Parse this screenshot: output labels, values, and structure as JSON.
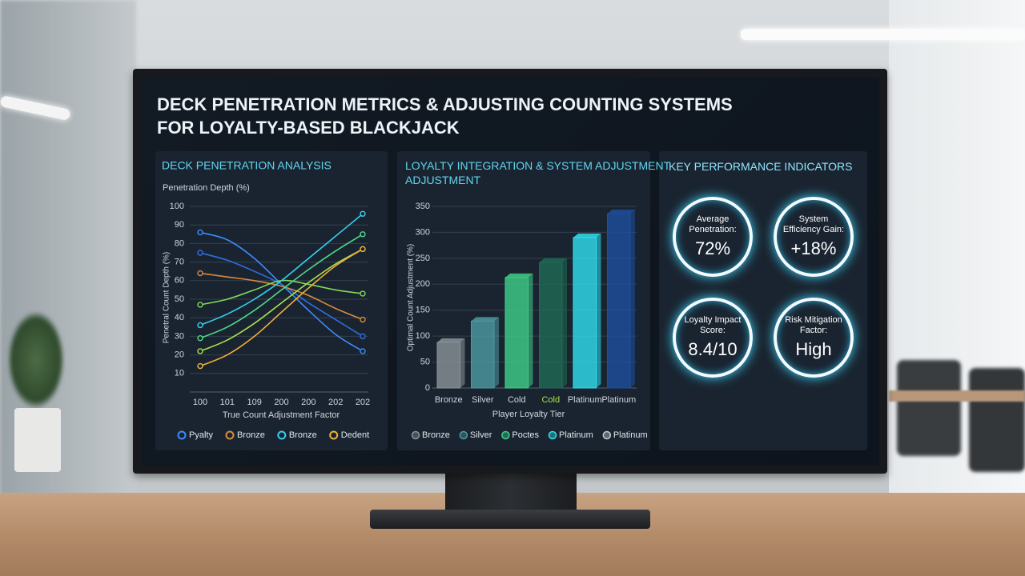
{
  "title_lines": [
    "DECK PENETRATION METRICS & ADJUSTING COUNTING SYSTEMS",
    "FOR LOYALTY-BASED BLACKJACK"
  ],
  "chart_data": [
    {
      "type": "line",
      "title": "DECK PENETRATION ANALYSIS",
      "subtitle": "Penetration Depth (%)",
      "y_label": "Penetral Count Depth (%)",
      "x_label": "True Count Adjustment Factor",
      "categories": [
        "100",
        "101",
        "109",
        "200",
        "200",
        "202",
        "202"
      ],
      "ylim": [
        0,
        100
      ],
      "yticks": [
        10,
        20,
        30,
        40,
        50,
        60,
        70,
        80,
        90,
        100
      ],
      "grid": true,
      "series": [
        {
          "name": "Pyalty",
          "color": "#3d8cff",
          "values": [
            86,
            82,
            72,
            58,
            44,
            31,
            22
          ]
        },
        {
          "color": "#2f6fe0",
          "values": [
            75,
            71,
            65,
            58,
            48,
            39,
            30
          ]
        },
        {
          "name": "Bronze",
          "color": "#d98a3d",
          "values": [
            64,
            62,
            60,
            57,
            52,
            45,
            39
          ]
        },
        {
          "color": "#7fd957",
          "values": [
            47,
            50,
            55,
            60,
            58,
            55,
            53
          ]
        },
        {
          "name": "Bronze",
          "color": "#35d0f0",
          "values": [
            36,
            42,
            50,
            60,
            72,
            84,
            96
          ]
        },
        {
          "color": "#4fd98a",
          "values": [
            29,
            35,
            44,
            55,
            66,
            76,
            85
          ]
        },
        {
          "color": "#a8e04a",
          "values": [
            22,
            28,
            37,
            48,
            59,
            69,
            77
          ]
        },
        {
          "name": "Dedent",
          "color": "#f0b13a",
          "values": [
            14,
            20,
            30,
            43,
            56,
            68,
            77
          ]
        }
      ]
    },
    {
      "type": "bar",
      "title": "LOYALTY INTEGRATION & SYSTEM ADJUSTMENT ADJUSTMENT",
      "y_label": "Optimal Count Adjustment (%)",
      "x_label": "Player Loyalty Tier",
      "categories": [
        "Bronze",
        "Silver",
        "Cold",
        "Cold",
        "Platinum",
        "Platinum"
      ],
      "values": [
        88,
        129,
        213,
        242,
        290,
        336
      ],
      "colors": [
        "#8a9499",
        "#4e9ba3",
        "#3fcf8a",
        "#1f6b55",
        "#2fe0f0",
        "#1e4fa0"
      ],
      "ylim": [
        0,
        350
      ],
      "yticks": [
        0,
        50,
        100,
        150,
        200,
        250,
        300,
        350
      ],
      "grid": true,
      "legend": [
        {
          "name": "Bronze",
          "color": "#8a9499"
        },
        {
          "name": "Silver",
          "color": "#4e9ba3"
        },
        {
          "name": "Poctes",
          "color": "#3fcf8a"
        },
        {
          "name": "Platinum",
          "color": "#2fe0f0"
        },
        {
          "name": "Platinum",
          "color": "#c8ccd0"
        }
      ]
    }
  ],
  "kpis": {
    "title": "KEY PERFORMANCE INDICATORS",
    "items": [
      {
        "label": "Average Penetration:",
        "value": "72%"
      },
      {
        "label": "System Efficiency Gain:",
        "value": "+18%"
      },
      {
        "label": "Loyalty Impact Score:",
        "value": "8.4/10"
      },
      {
        "label": "Risk Mitigation Factor:",
        "value": "High"
      }
    ]
  }
}
